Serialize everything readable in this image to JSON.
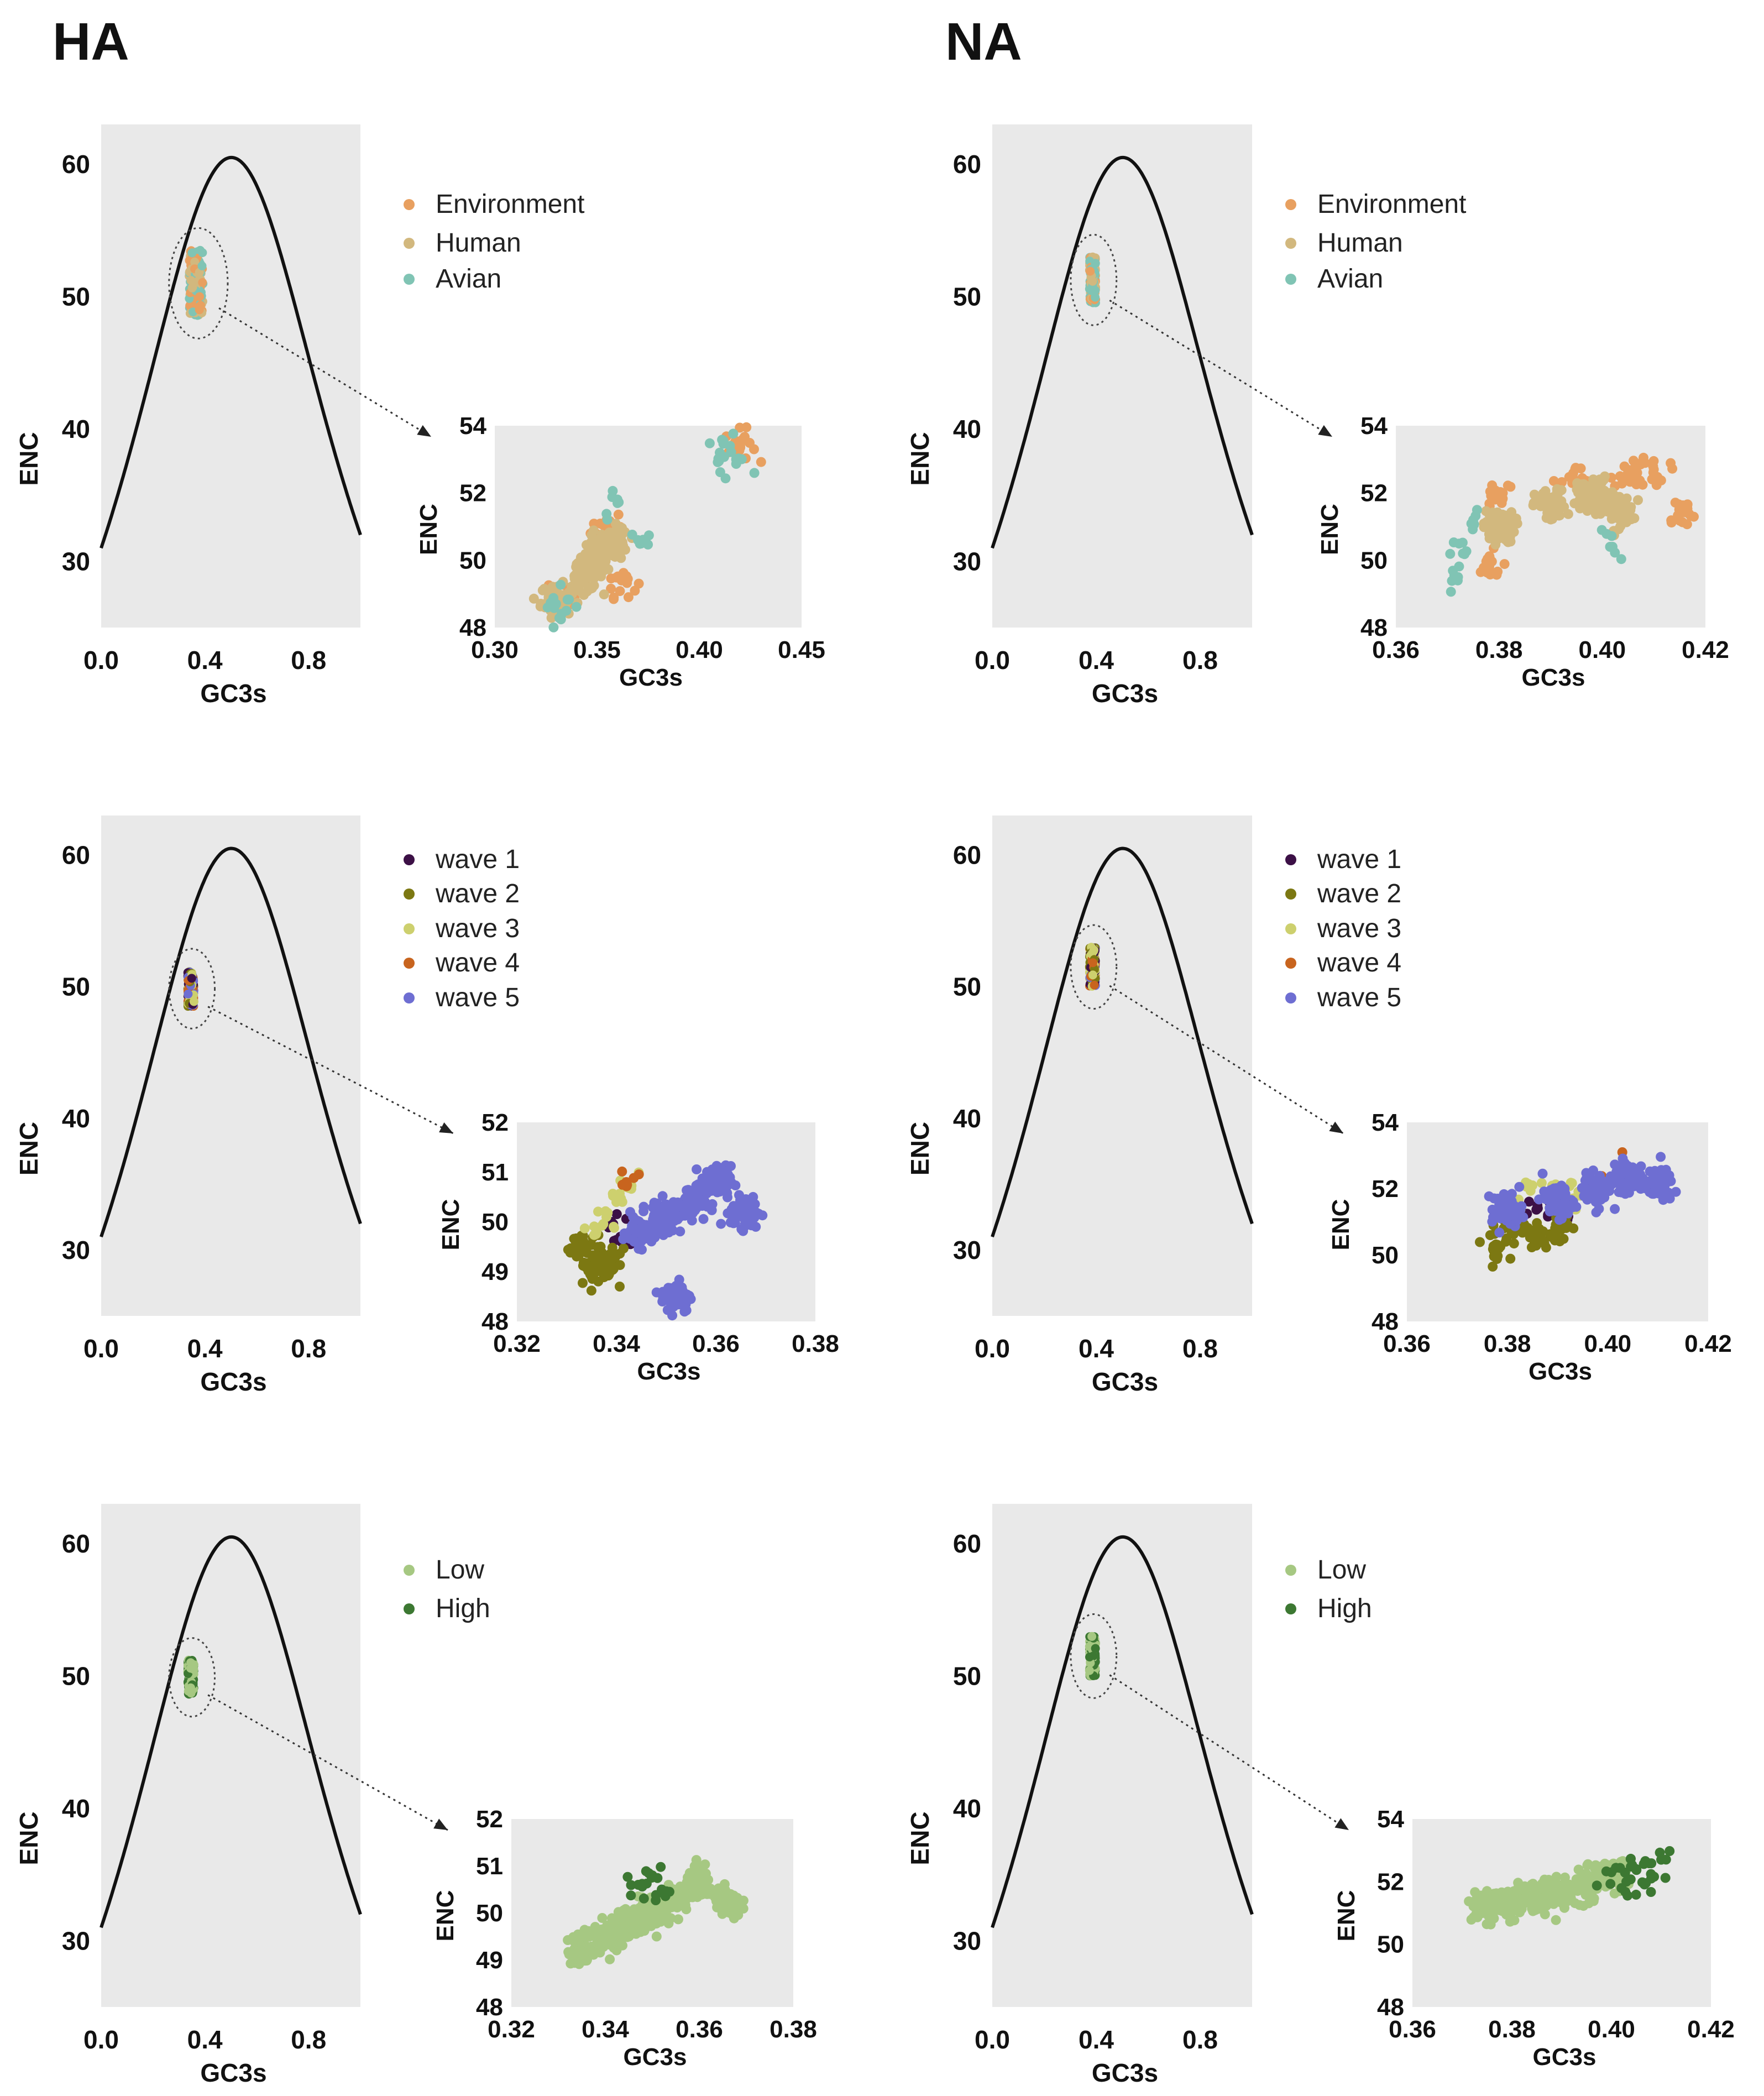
{
  "columns": {
    "left": "HA",
    "right": "NA"
  },
  "colors": {
    "environment": "#e8a060",
    "human": "#d2b87e",
    "avian": "#80c4b4",
    "wave1": "#3c1046",
    "wave2": "#7c7812",
    "wave3": "#cdd06e",
    "wave4": "#c8641e",
    "wave5": "#6e6ed2",
    "low": "#a6c882",
    "high": "#3c7832",
    "panel_bg": "#e9e9e9",
    "curve": "#111111"
  },
  "chart_data": [
    {
      "id": "ha-host-main",
      "type": "scatter",
      "xlabel": "GC3s",
      "ylabel": "ENC",
      "xlim": [
        0.0,
        1.0
      ],
      "ylim": [
        25,
        63
      ],
      "xticks": [
        "0.0",
        "0.4",
        "0.8"
      ],
      "yticks": [
        "30",
        "40",
        "50",
        "60"
      ],
      "curve": "ENC = 2 + s + 29/(s^2 + (1-s)^2)",
      "cluster": {
        "x_range": [
          0.33,
          0.42
        ],
        "y_range": [
          48.5,
          53.5
        ]
      }
    },
    {
      "id": "ha-host-zoom",
      "type": "scatter",
      "xlabel": "GC3s",
      "ylabel": "ENC",
      "xlim": [
        0.3,
        0.45
      ],
      "ylim": [
        48,
        54
      ],
      "xticks": [
        "0.30",
        "0.35",
        "0.40",
        "0.45"
      ],
      "yticks": [
        "48",
        "50",
        "52",
        "54"
      ],
      "series": [
        {
          "name": "Environment",
          "color_key": "environment",
          "approx_points": [
            [
              0.335,
              49.0
            ],
            [
              0.35,
              50.2
            ],
            [
              0.355,
              51.0
            ],
            [
              0.362,
              49.4
            ],
            [
              0.42,
              53.4
            ]
          ]
        },
        {
          "name": "Human",
          "color_key": "human",
          "approx_points": [
            [
              0.33,
              48.8
            ],
            [
              0.345,
              49.6
            ],
            [
              0.35,
              50.1
            ],
            [
              0.358,
              50.5
            ]
          ]
        },
        {
          "name": "Avian",
          "color_key": "avian",
          "approx_points": [
            [
              0.33,
              48.7
            ],
            [
              0.335,
              48.5
            ],
            [
              0.36,
              51.7
            ],
            [
              0.37,
              50.6
            ],
            [
              0.41,
              53.2
            ],
            [
              0.415,
              53.4
            ],
            [
              0.418,
              53.0
            ]
          ]
        }
      ]
    },
    {
      "id": "na-host-main",
      "type": "scatter",
      "xlabel": "GC3s",
      "ylabel": "ENC",
      "xlim": [
        0.0,
        1.0
      ],
      "ylim": [
        25,
        63
      ],
      "xticks": [
        "0.0",
        "0.4",
        "0.8"
      ],
      "yticks": [
        "30",
        "40",
        "50",
        "60"
      ],
      "curve": "ENC = 2 + s + 29/(s^2 + (1-s)^2)",
      "cluster": {
        "x_range": [
          0.37,
          0.41
        ],
        "y_range": [
          49.5,
          53
        ]
      }
    },
    {
      "id": "na-host-zoom",
      "type": "scatter",
      "xlabel": "GC3s",
      "ylabel": "ENC",
      "xlim": [
        0.36,
        0.42
      ],
      "ylim": [
        48,
        54
      ],
      "xticks": [
        "0.36",
        "0.38",
        "0.40",
        "0.42"
      ],
      "yticks": [
        "48",
        "50",
        "52",
        "54"
      ],
      "series": [
        {
          "name": "Environment",
          "color_key": "environment",
          "approx_points": [
            [
              0.38,
              52.0
            ],
            [
              0.395,
              52.3
            ],
            [
              0.405,
              52.6
            ],
            [
              0.41,
              52.7
            ],
            [
              0.415,
              51.4
            ],
            [
              0.378,
              49.8
            ]
          ]
        },
        {
          "name": "Human",
          "color_key": "human",
          "approx_points": [
            [
              0.38,
              51.0
            ],
            [
              0.39,
              51.6
            ],
            [
              0.398,
              52.0
            ],
            [
              0.403,
              51.5
            ]
          ]
        },
        {
          "name": "Avian",
          "color_key": "avian",
          "approx_points": [
            [
              0.372,
              49.4
            ],
            [
              0.373,
              50.2
            ],
            [
              0.375,
              51.2
            ],
            [
              0.402,
              50.4
            ]
          ]
        }
      ]
    },
    {
      "id": "ha-wave-main",
      "type": "scatter",
      "xlabel": "GC3s",
      "ylabel": "ENC",
      "xlim": [
        0.0,
        1.0
      ],
      "ylim": [
        25,
        63
      ],
      "xticks": [
        "0.0",
        "0.4",
        "0.8"
      ],
      "yticks": [
        "30",
        "40",
        "50",
        "60"
      ],
      "curve": "ENC = 2 + s + 29/(s^2 + (1-s)^2)",
      "cluster": {
        "x_range": [
          0.33,
          0.37
        ],
        "y_range": [
          48.5,
          51.2
        ]
      }
    },
    {
      "id": "ha-wave-zoom",
      "type": "scatter",
      "xlabel": "GC3s",
      "ylabel": "ENC",
      "xlim": [
        0.32,
        0.38
      ],
      "ylim": [
        48,
        52
      ],
      "xticks": [
        "0.32",
        "0.34",
        "0.36",
        "0.38"
      ],
      "yticks": [
        "48",
        "49",
        "50",
        "51",
        "52"
      ],
      "series": [
        {
          "name": "wave 1",
          "color_key": "wave1",
          "approx_points": [
            [
              0.339,
              50.0
            ],
            [
              0.341,
              49.6
            ]
          ]
        },
        {
          "name": "wave 2",
          "color_key": "wave2",
          "approx_points": [
            [
              0.333,
              49.5
            ],
            [
              0.335,
              49.0
            ],
            [
              0.337,
              49.3
            ],
            [
              0.339,
              49.1
            ]
          ]
        },
        {
          "name": "wave 3",
          "color_key": "wave3",
          "approx_points": [
            [
              0.336,
              49.8
            ],
            [
              0.338,
              50.1
            ],
            [
              0.34,
              50.4
            ],
            [
              0.342,
              50.7
            ]
          ]
        },
        {
          "name": "wave 4",
          "color_key": "wave4",
          "approx_points": [
            [
              0.342,
              50.8
            ]
          ]
        },
        {
          "name": "wave 5",
          "color_key": "wave5",
          "approx_points": [
            [
              0.345,
              49.8
            ],
            [
              0.35,
              50.1
            ],
            [
              0.355,
              50.4
            ],
            [
              0.36,
              50.8
            ],
            [
              0.366,
              50.2
            ],
            [
              0.352,
              48.5
            ]
          ]
        }
      ]
    },
    {
      "id": "na-wave-main",
      "type": "scatter",
      "xlabel": "GC3s",
      "ylabel": "ENC",
      "xlim": [
        0.0,
        1.0
      ],
      "ylim": [
        25,
        63
      ],
      "xticks": [
        "0.0",
        "0.4",
        "0.8"
      ],
      "yticks": [
        "30",
        "40",
        "50",
        "60"
      ],
      "curve": "ENC = 2 + s + 29/(s^2 + (1-s)^2)",
      "cluster": {
        "x_range": [
          0.37,
          0.41
        ],
        "y_range": [
          50,
          53
        ]
      }
    },
    {
      "id": "na-wave-zoom",
      "type": "scatter",
      "xlabel": "GC3s",
      "ylabel": "ENC",
      "xlim": [
        0.36,
        0.42
      ],
      "ylim": [
        48,
        54
      ],
      "xticks": [
        "0.36",
        "0.38",
        "0.40",
        "0.42"
      ],
      "yticks": [
        "48",
        "50",
        "52",
        "54"
      ],
      "series": [
        {
          "name": "wave 1",
          "color_key": "wave1",
          "approx_points": [
            [
              0.386,
              51.5
            ],
            [
              0.39,
              51.2
            ]
          ]
        },
        {
          "name": "wave 2",
          "color_key": "wave2",
          "approx_points": [
            [
              0.378,
              50.3
            ],
            [
              0.381,
              51.0
            ],
            [
              0.385,
              50.6
            ],
            [
              0.39,
              50.8
            ]
          ]
        },
        {
          "name": "wave 3",
          "color_key": "wave3",
          "approx_points": [
            [
              0.385,
              52.1
            ],
            [
              0.39,
              52.0
            ],
            [
              0.393,
              51.7
            ]
          ]
        },
        {
          "name": "wave 4",
          "color_key": "wave4",
          "approx_points": [
            [
              0.403,
              52.7
            ]
          ]
        },
        {
          "name": "wave 5",
          "color_key": "wave5",
          "approx_points": [
            [
              0.38,
              51.4
            ],
            [
              0.39,
              51.6
            ],
            [
              0.398,
              52.0
            ],
            [
              0.404,
              52.4
            ],
            [
              0.41,
              52.1
            ]
          ]
        }
      ]
    },
    {
      "id": "ha-level-main",
      "type": "scatter",
      "xlabel": "GC3s",
      "ylabel": "ENC",
      "xlim": [
        0.0,
        1.0
      ],
      "ylim": [
        25,
        63
      ],
      "xticks": [
        "0.0",
        "0.4",
        "0.8"
      ],
      "yticks": [
        "30",
        "40",
        "50",
        "60"
      ],
      "curve": "ENC = 2 + s + 29/(s^2 + (1-s)^2)",
      "cluster": {
        "x_range": [
          0.33,
          0.37
        ],
        "y_range": [
          48.6,
          51.2
        ]
      }
    },
    {
      "id": "ha-level-zoom",
      "type": "scatter",
      "xlabel": "GC3s",
      "ylabel": "ENC",
      "xlim": [
        0.32,
        0.38
      ],
      "ylim": [
        48,
        52
      ],
      "xticks": [
        "0.32",
        "0.34",
        "0.36",
        "0.38"
      ],
      "yticks": [
        "48",
        "49",
        "50",
        "51",
        "52"
      ],
      "series": [
        {
          "name": "Low",
          "color_key": "low",
          "approx_points": [
            [
              0.335,
              49.2
            ],
            [
              0.34,
              49.5
            ],
            [
              0.345,
              49.8
            ],
            [
              0.35,
              50.0
            ],
            [
              0.355,
              50.3
            ],
            [
              0.36,
              50.6
            ],
            [
              0.366,
              50.2
            ]
          ]
        },
        {
          "name": "High",
          "color_key": "high",
          "approx_points": [
            [
              0.347,
              50.6
            ],
            [
              0.35,
              50.8
            ],
            [
              0.352,
              50.5
            ]
          ]
        }
      ]
    },
    {
      "id": "na-level-main",
      "type": "scatter",
      "xlabel": "GC3s",
      "ylabel": "ENC",
      "xlim": [
        0.0,
        1.0
      ],
      "ylim": [
        25,
        63
      ],
      "xticks": [
        "0.0",
        "0.4",
        "0.8"
      ],
      "yticks": [
        "30",
        "40",
        "50",
        "60"
      ],
      "curve": "ENC = 2 + s + 29/(s^2 + (1-s)^2)",
      "cluster": {
        "x_range": [
          0.37,
          0.41
        ],
        "y_range": [
          50,
          53
        ]
      }
    },
    {
      "id": "na-level-zoom",
      "type": "scatter",
      "xlabel": "GC3s",
      "ylabel": "ENC",
      "xlim": [
        0.36,
        0.42
      ],
      "ylim": [
        48,
        54
      ],
      "xticks": [
        "0.36",
        "0.38",
        "0.40",
        "0.42"
      ],
      "yticks": [
        "48",
        "50",
        "52",
        "54"
      ],
      "series": [
        {
          "name": "Low",
          "color_key": "low",
          "approx_points": [
            [
              0.375,
              51.2
            ],
            [
              0.38,
              51.3
            ],
            [
              0.385,
              51.5
            ],
            [
              0.39,
              51.6
            ],
            [
              0.395,
              51.9
            ],
            [
              0.4,
              52.2
            ]
          ]
        },
        {
          "name": "High",
          "color_key": "high",
          "approx_points": [
            [
              0.4,
              52.3
            ],
            [
              0.403,
              52.0
            ],
            [
              0.405,
              52.4
            ],
            [
              0.408,
              52.1
            ],
            [
              0.41,
              52.7
            ]
          ]
        }
      ]
    }
  ]
}
